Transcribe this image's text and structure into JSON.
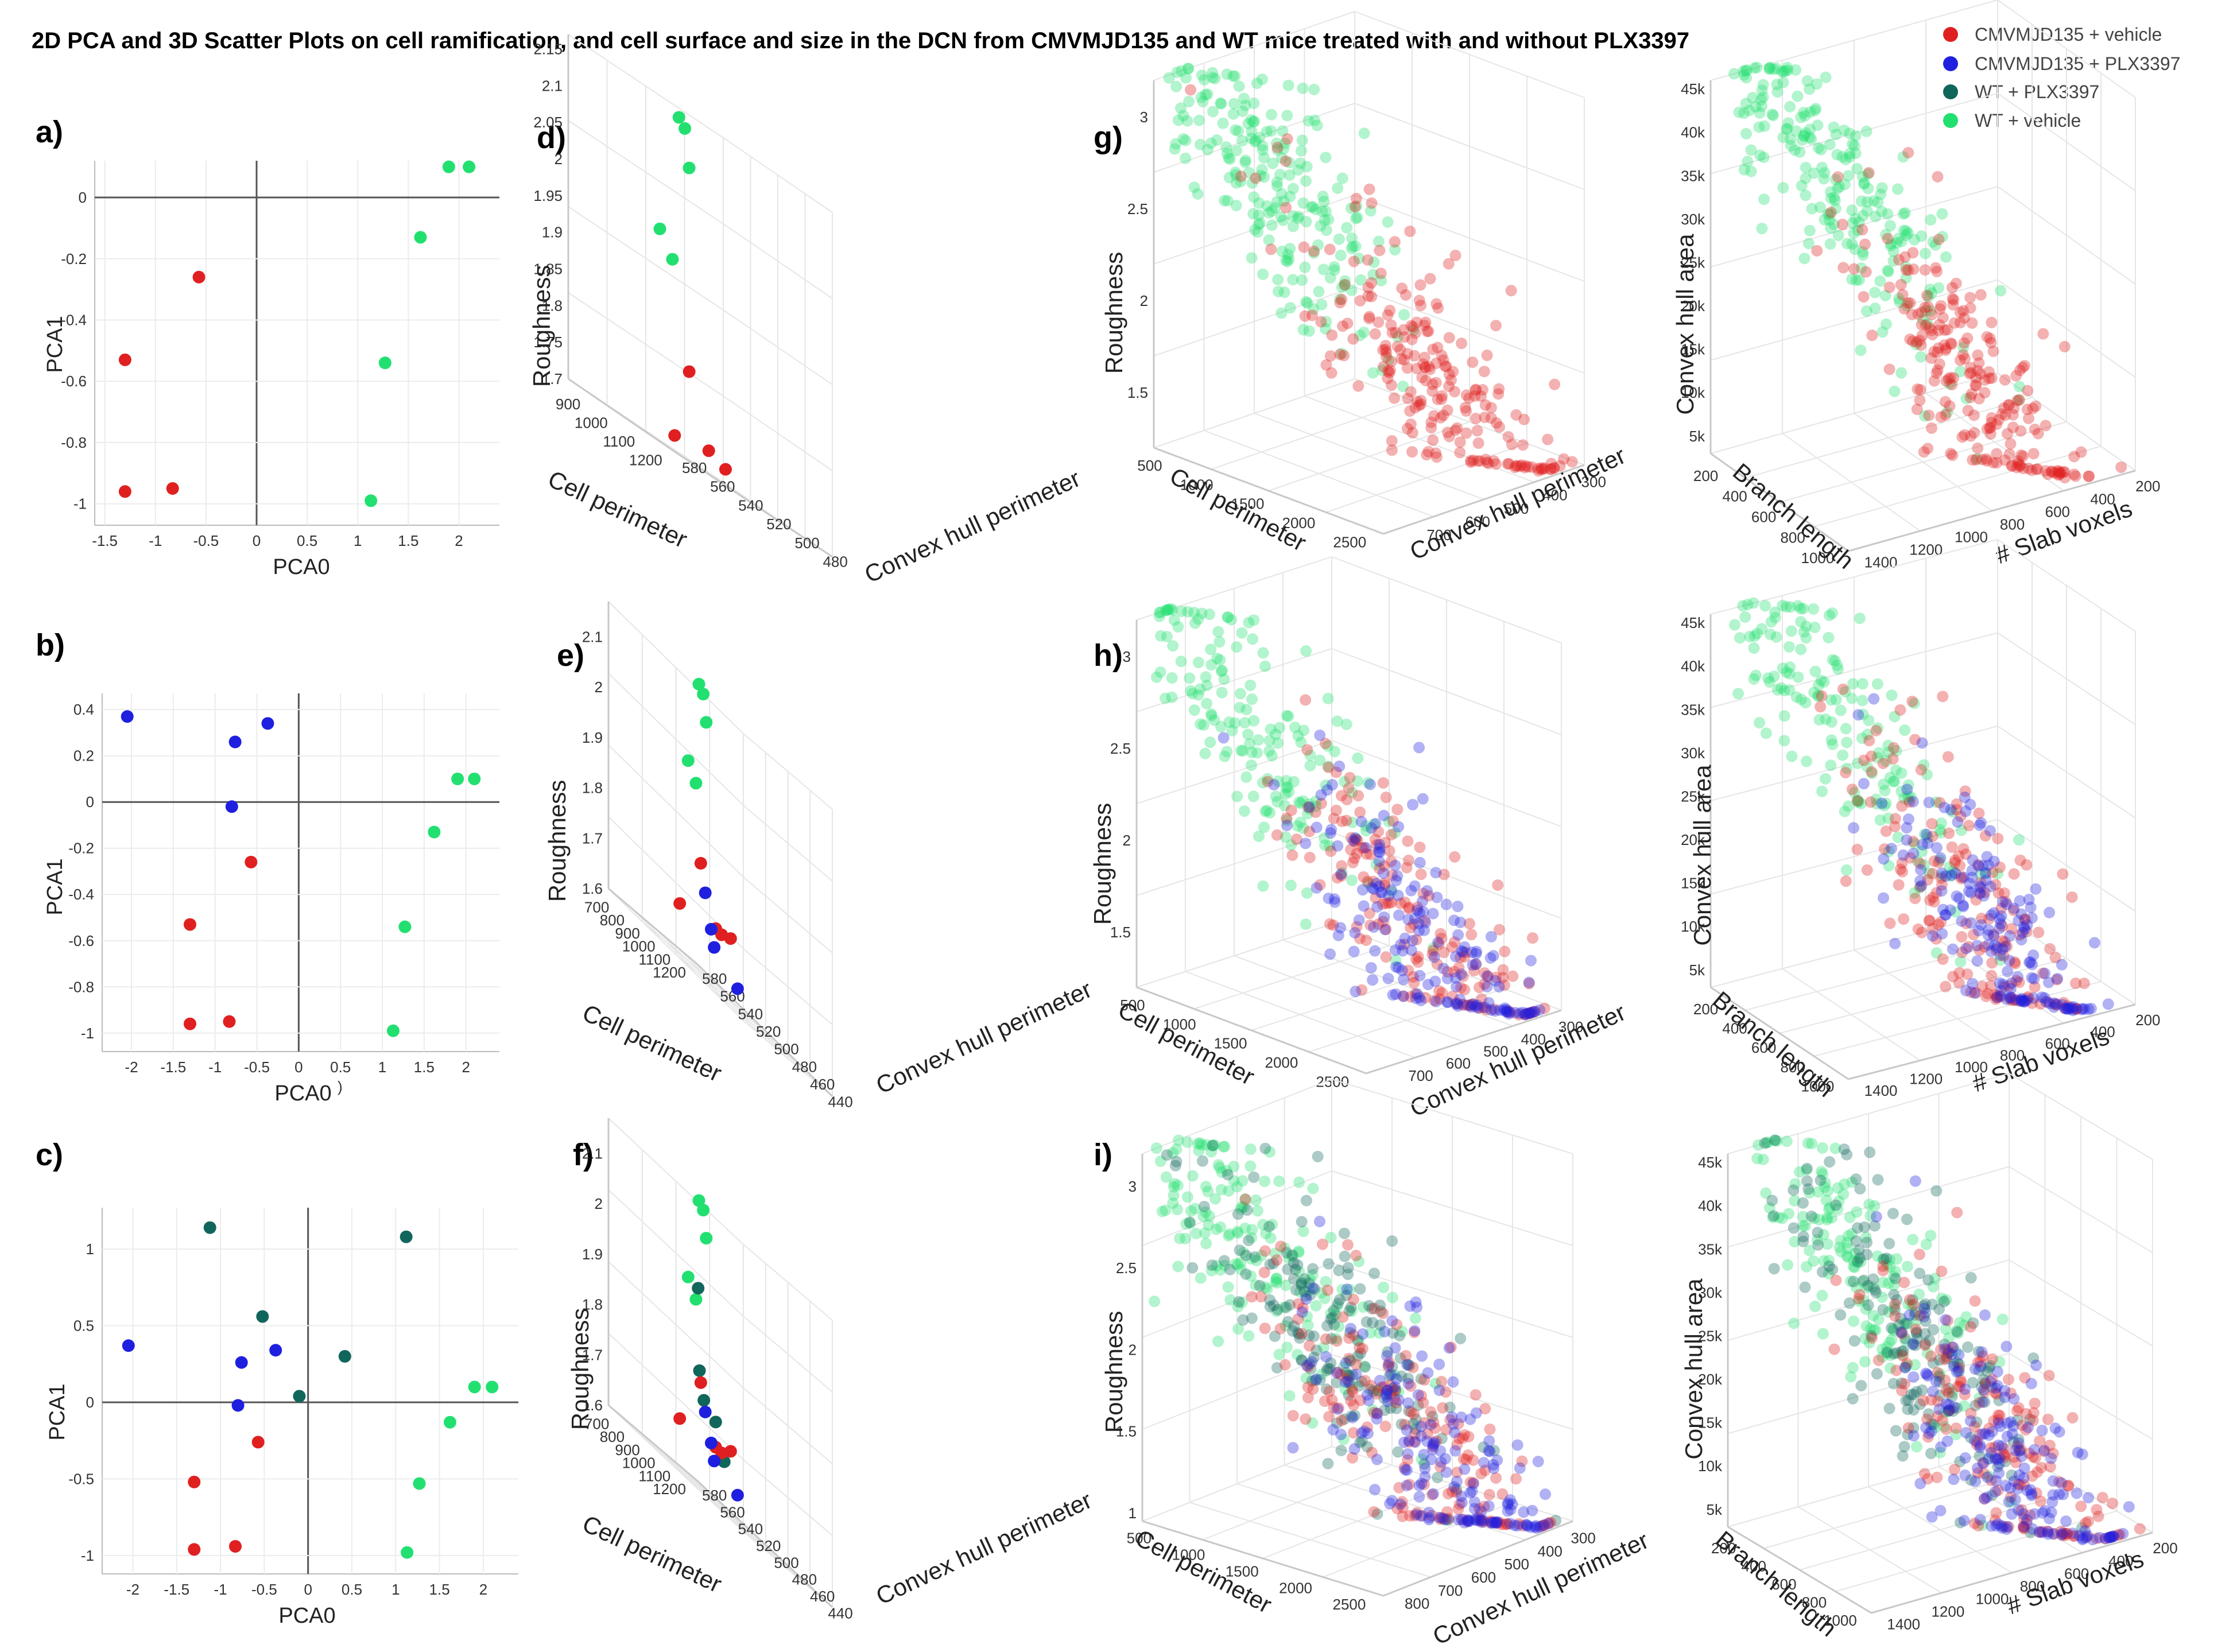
{
  "title": "2D PCA and 3D Scatter Plots on cell ramification, and cell surface and size in the DCN from CMVMJD135 and WT mice treated with and without PLX3397",
  "legend": [
    {
      "label": "CMVMJD135 + vehicle",
      "color": "#e02020"
    },
    {
      "label": "CMVMJD135 + PLX3397",
      "color": "#1f1fe0"
    },
    {
      "label": "WT + PLX3397",
      "color": "#11665c"
    },
    {
      "label": "WT + vehicle",
      "color": "#22e070"
    }
  ],
  "stray_mark": ")",
  "chart_data": [
    {
      "id": "a",
      "panel_label": "a)",
      "type": "scatter",
      "xlabel": "PCA0",
      "ylabel": "PCA1",
      "xlim": [
        -1.6,
        2.4
      ],
      "ylim": [
        -1.07,
        0.12
      ],
      "xticks": [
        -1.5,
        -1,
        -0.5,
        0,
        0.5,
        1,
        1.5,
        2
      ],
      "xtick_labels": [
        "-1.5",
        "-1",
        "-0.5",
        "0",
        "0.5",
        "1",
        "1.5",
        "2"
      ],
      "yticks": [
        0,
        -0.2,
        -0.4,
        -0.6,
        -0.8,
        -1
      ],
      "ytick_labels": [
        "0",
        "-0.2",
        "-0.4",
        "-0.6",
        "-0.8",
        "-1"
      ],
      "series": [
        {
          "name": "CMVMJD135 + vehicle",
          "color": "#e02020",
          "x": [
            -0.57,
            -1.3,
            -0.83,
            -1.3
          ],
          "y": [
            -0.26,
            -0.53,
            -0.95,
            -0.96
          ]
        },
        {
          "name": "WT + vehicle",
          "color": "#22e070",
          "x": [
            1.9,
            2.1,
            1.62,
            1.27,
            1.13
          ],
          "y": [
            0.1,
            0.1,
            -0.13,
            -0.54,
            -0.99
          ]
        }
      ]
    },
    {
      "id": "b",
      "panel_label": "b)",
      "type": "scatter",
      "xlabel": "PCA0",
      "ylabel": "PCA1",
      "xlim": [
        -2.35,
        2.4
      ],
      "ylim": [
        -1.08,
        0.47
      ],
      "xticks": [
        -2,
        -1.5,
        -1,
        -0.5,
        0,
        0.5,
        1,
        1.5,
        2
      ],
      "xtick_labels": [
        "-2",
        "-1.5",
        "-1",
        "-0.5",
        "0",
        "0.5",
        "1",
        "1.5",
        "2"
      ],
      "yticks": [
        0.4,
        0.2,
        0,
        -0.2,
        -0.4,
        -0.6,
        -0.8,
        -1
      ],
      "ytick_labels": [
        "0.4",
        "0.2",
        "0",
        "-0.2",
        "-0.4",
        "-0.6",
        "-0.8",
        "-1"
      ],
      "series": [
        {
          "name": "CMVMJD135 + PLX3397",
          "color": "#1f1fe0",
          "x": [
            -2.05,
            -0.37,
            -0.76,
            -0.8
          ],
          "y": [
            0.37,
            0.34,
            0.26,
            -0.02
          ]
        },
        {
          "name": "CMVMJD135 + vehicle",
          "color": "#e02020",
          "x": [
            -0.57,
            -1.3,
            -0.83,
            -1.3
          ],
          "y": [
            -0.26,
            -0.53,
            -0.95,
            -0.96
          ]
        },
        {
          "name": "WT + vehicle",
          "color": "#22e070",
          "x": [
            1.9,
            2.1,
            1.62,
            1.27,
            1.13
          ],
          "y": [
            0.1,
            0.1,
            -0.13,
            -0.54,
            -0.99
          ]
        }
      ]
    },
    {
      "id": "c",
      "panel_label": "c)",
      "type": "scatter",
      "xlabel": "PCA0",
      "ylabel": "PCA1",
      "xlim": [
        -2.35,
        2.4
      ],
      "ylim": [
        -1.12,
        1.27
      ],
      "xticks": [
        -2,
        -1.5,
        -1,
        -0.5,
        0,
        0.5,
        1,
        1.5,
        2
      ],
      "xtick_labels": [
        "-2",
        "-1.5",
        "-1",
        "-0.5",
        "0",
        "0.5",
        "1",
        "1.5",
        "2"
      ],
      "yticks": [
        1,
        0.5,
        0,
        -0.5,
        -1
      ],
      "ytick_labels": [
        "1",
        "0.5",
        "0",
        "-0.5",
        "-1"
      ],
      "series": [
        {
          "name": "WT + PLX3397",
          "color": "#11665c",
          "x": [
            -1.12,
            1.12,
            -0.52,
            0.42,
            -0.1
          ],
          "y": [
            1.14,
            1.08,
            0.56,
            0.3,
            0.04
          ]
        },
        {
          "name": "CMVMJD135 + PLX3397",
          "color": "#1f1fe0",
          "x": [
            -2.05,
            -0.37,
            -0.76,
            -0.8
          ],
          "y": [
            0.37,
            0.34,
            0.26,
            -0.02
          ]
        },
        {
          "name": "CMVMJD135 + vehicle",
          "color": "#e02020",
          "x": [
            -0.57,
            -1.3,
            -0.83,
            -1.3
          ],
          "y": [
            -0.26,
            -0.52,
            -0.94,
            -0.96
          ]
        },
        {
          "name": "WT + vehicle",
          "color": "#22e070",
          "x": [
            1.9,
            2.1,
            1.62,
            1.27,
            1.13
          ],
          "y": [
            0.1,
            0.1,
            -0.13,
            -0.53,
            -0.98
          ]
        }
      ]
    },
    {
      "id": "d",
      "panel_label": "d)",
      "type": "scatter3d",
      "xlabel": "Cell perimeter",
      "ylabel": "Convex hull perimeter",
      "zlabel": "Roughness",
      "xlim": [
        830,
        1230
      ],
      "ylim": [
        580,
        470
      ],
      "zlim": [
        1.7,
        2.17
      ],
      "xticks": [
        900,
        1000,
        1100,
        1200
      ],
      "xtick_labels": [
        "900",
        "1000",
        "1100",
        "1200"
      ],
      "yticks": [
        580,
        560,
        540,
        520,
        500,
        480
      ],
      "ytick_labels": [
        "580",
        "560",
        "540",
        "520",
        "500",
        "480"
      ],
      "zticks": [
        1.7,
        1.75,
        1.8,
        1.85,
        1.9,
        1.95,
        2,
        2.05,
        2.1,
        2.15
      ],
      "ztick_labels": [
        "1.7",
        "1.75",
        "1.8",
        "1.85",
        "1.9",
        "1.95",
        "2",
        "2.05",
        "2.1",
        "2.15"
      ],
      "series": [
        {
          "name": "WT + vehicle",
          "color": "#22e070",
          "x": [
            1210,
            1180,
            1170,
            1140,
            1150
          ],
          "y": [
            575,
            565,
            560,
            575,
            568
          ],
          "z": [
            2.16,
            2.15,
            2.1,
            1.99,
            1.96
          ]
        },
        {
          "name": "CMVMJD135 + vehicle",
          "color": "#e02020",
          "x": [
            860,
            880,
            890,
            910
          ],
          "y": [
            500,
            490,
            480,
            520
          ],
          "z": [
            1.82,
            1.73,
            1.72,
            1.72
          ]
        }
      ]
    },
    {
      "id": "e",
      "panel_label": "e)",
      "type": "scatter3d",
      "xlabel": "Cell perimeter",
      "ylabel": "Convex hull perimeter",
      "zlabel": "Roughness",
      "xlim": [
        650,
        1230
      ],
      "ylim": [
        580,
        430
      ],
      "zlim": [
        1.6,
        2.17
      ],
      "xticks": [
        700,
        800,
        900,
        1000,
        1100,
        1200
      ],
      "xtick_labels": [
        "700",
        "800",
        "900",
        "1000",
        "1100",
        "1200"
      ],
      "yticks": [
        580,
        560,
        540,
        520,
        500,
        480,
        460,
        440
      ],
      "ytick_labels": [
        "580",
        "560",
        "540",
        "520",
        "500",
        "480",
        "460",
        "440"
      ],
      "zticks": [
        1.6,
        1.7,
        1.8,
        1.9,
        2,
        2.1
      ],
      "ztick_labels": [
        "1.6",
        "1.7",
        "1.8",
        "1.9",
        "2",
        "2.1"
      ],
      "series": [
        {
          "name": "WT + vehicle",
          "color": "#22e070",
          "x": [
            1210,
            1180,
            1170,
            1140,
            1150
          ],
          "y": [
            575,
            565,
            560,
            575,
            568
          ],
          "z": [
            2.16,
            2.15,
            2.1,
            1.99,
            1.96
          ]
        },
        {
          "name": "CMVMJD135 + vehicle",
          "color": "#e02020",
          "x": [
            900,
            880,
            860,
            880,
            860
          ],
          "y": [
            520,
            500,
            490,
            540,
            480
          ],
          "z": [
            1.82,
            1.72,
            1.72,
            1.7,
            1.73
          ]
        },
        {
          "name": "CMVMJD135 + PLX3397",
          "color": "#1f1fe0",
          "x": [
            900,
            880,
            870,
            700
          ],
          "y": [
            515,
            505,
            500,
            445
          ],
          "z": [
            1.77,
            1.71,
            1.68,
            1.65
          ]
        }
      ]
    },
    {
      "id": "f",
      "panel_label": "f)",
      "type": "scatter3d",
      "xlabel": "Cell perimeter",
      "ylabel": "Convex hull perimeter",
      "zlabel": "Roughness",
      "xlim": [
        650,
        1230
      ],
      "ylim": [
        580,
        430
      ],
      "zlim": [
        1.6,
        2.17
      ],
      "xticks": [
        700,
        800,
        900,
        1000,
        1100,
        1200
      ],
      "xtick_labels": [
        "700",
        "800",
        "900",
        "1000",
        "1100",
        "1200"
      ],
      "yticks": [
        580,
        560,
        540,
        520,
        500,
        480,
        460,
        440
      ],
      "ytick_labels": [
        "580",
        "560",
        "540",
        "520",
        "500",
        "480",
        "460",
        "440"
      ],
      "zticks": [
        1.6,
        1.7,
        1.8,
        1.9,
        2,
        2.1
      ],
      "ztick_labels": [
        "1.6",
        "1.7",
        "1.8",
        "1.9",
        "2",
        "2.1"
      ],
      "series": [
        {
          "name": "WT + vehicle",
          "color": "#22e070",
          "x": [
            1210,
            1180,
            1170,
            1140,
            1150
          ],
          "y": [
            575,
            565,
            560,
            575,
            568
          ],
          "z": [
            2.16,
            2.15,
            2.1,
            1.99,
            1.96
          ]
        },
        {
          "name": "WT + PLX3397",
          "color": "#11665c",
          "x": [
            1000,
            950,
            920,
            880,
            760
          ],
          "y": [
            540,
            530,
            520,
            500,
            470
          ],
          "z": [
            1.99,
            1.83,
            1.78,
            1.76,
            1.7
          ]
        },
        {
          "name": "CMVMJD135 + vehicle",
          "color": "#e02020",
          "x": [
            900,
            880,
            860,
            880,
            860
          ],
          "y": [
            520,
            500,
            490,
            540,
            480
          ],
          "z": [
            1.81,
            1.71,
            1.71,
            1.7,
            1.73
          ]
        },
        {
          "name": "CMVMJD135 + PLX3397",
          "color": "#1f1fe0",
          "x": [
            900,
            880,
            870,
            700
          ],
          "y": [
            515,
            505,
            500,
            445
          ],
          "z": [
            1.76,
            1.71,
            1.68,
            1.66
          ]
        }
      ]
    },
    {
      "id": "g1",
      "panel_label": "g)",
      "type": "scatter3d",
      "distribution": true,
      "xlabel": "Cell perimeter",
      "ylabel": "Convex hull perimeter",
      "zlabel": "Roughness",
      "xlim": [
        350,
        2600
      ],
      "ylim": [
        800,
        280
      ],
      "zlim": [
        1.2,
        3.2
      ],
      "xticks": [
        500,
        1000,
        1500,
        2000,
        2500
      ],
      "xtick_labels": [
        "500",
        "1000",
        "1500",
        "2000",
        "2500"
      ],
      "yticks": [
        700,
        600,
        500,
        400,
        300
      ],
      "ytick_labels": [
        "700",
        "600",
        "500",
        "400",
        "300"
      ],
      "zticks": [
        1.5,
        2,
        2.5,
        3
      ],
      "ztick_labels": [
        "1.5",
        "2",
        "2.5",
        "3"
      ],
      "groups": [
        "WT + vehicle",
        "CMVMJD135 + vehicle"
      ]
    },
    {
      "id": "g2",
      "panel_label": "",
      "type": "scatter3d",
      "distribution": true,
      "xlabel": "Branch length",
      "ylabel": "# Slab voxels",
      "zlabel": "Convex hull area",
      "xlim": [
        100,
        1050
      ],
      "ylim": [
        1450,
        180
      ],
      "zlim": [
        3000,
        46000
      ],
      "xticks": [
        200,
        400,
        600,
        800,
        1000
      ],
      "xtick_labels": [
        "200",
        "400",
        "600",
        "800",
        "1000"
      ],
      "yticks": [
        1400,
        1200,
        1000,
        800,
        600,
        400,
        200
      ],
      "ytick_labels": [
        "1400",
        "1200",
        "1000",
        "800",
        "600",
        "400",
        "200"
      ],
      "zticks": [
        5000,
        10000,
        15000,
        20000,
        25000,
        30000,
        35000,
        40000,
        45000
      ],
      "ztick_labels": [
        "5k",
        "10k",
        "15k",
        "20k",
        "25k",
        "30k",
        "35k",
        "40k",
        "45k"
      ],
      "groups": [
        "WT + vehicle",
        "CMVMJD135 + vehicle"
      ]
    },
    {
      "id": "h1",
      "panel_label": "h)",
      "type": "scatter3d",
      "distribution": true,
      "xlabel": "Cell perimeter",
      "ylabel": "Convex hull perimeter",
      "zlabel": "Roughness",
      "xlim": [
        350,
        2600
      ],
      "ylim": [
        800,
        280
      ],
      "zlim": [
        1.2,
        3.2
      ],
      "xticks": [
        500,
        1000,
        1500,
        2000,
        2500
      ],
      "xtick_labels": [
        "500",
        "1000",
        "1500",
        "2000",
        "2500"
      ],
      "yticks": [
        700,
        600,
        500,
        400,
        300
      ],
      "ytick_labels": [
        "700",
        "600",
        "500",
        "400",
        "300"
      ],
      "zticks": [
        1.5,
        2,
        2.5,
        3
      ],
      "ztick_labels": [
        "1.5",
        "2",
        "2.5",
        "3"
      ],
      "groups": [
        "WT + vehicle",
        "CMVMJD135 + vehicle",
        "CMVMJD135 + PLX3397"
      ]
    },
    {
      "id": "h2",
      "panel_label": "",
      "type": "scatter3d",
      "distribution": true,
      "xlabel": "Branch length",
      "ylabel": "# Slab voxels",
      "zlabel": "Convex hull area",
      "xlim": [
        100,
        1050
      ],
      "ylim": [
        1450,
        180
      ],
      "zlim": [
        3000,
        46000
      ],
      "xticks": [
        200,
        400,
        600,
        800,
        1000
      ],
      "xtick_labels": [
        "200",
        "400",
        "600",
        "800",
        "1000"
      ],
      "yticks": [
        1400,
        1200,
        1000,
        800,
        600,
        400,
        200
      ],
      "ytick_labels": [
        "1400",
        "1200",
        "1000",
        "800",
        "600",
        "400",
        "200"
      ],
      "zticks": [
        5000,
        10000,
        15000,
        20000,
        25000,
        30000,
        35000,
        40000,
        45000
      ],
      "ztick_labels": [
        "5k",
        "10k",
        "15k",
        "20k",
        "25k",
        "30k",
        "35k",
        "40k",
        "45k"
      ],
      "groups": [
        "WT + vehicle",
        "CMVMJD135 + vehicle",
        "CMVMJD135 + PLX3397"
      ]
    },
    {
      "id": "i1",
      "panel_label": "i)",
      "type": "scatter3d",
      "distribution": true,
      "xlabel": "Cell perimeter",
      "ylabel": "Convex hull perimeter",
      "zlabel": "Roughness",
      "xlim": [
        350,
        2600
      ],
      "ylim": [
        850,
        280
      ],
      "zlim": [
        0.95,
        3.2
      ],
      "xticks": [
        500,
        1000,
        1500,
        2000,
        2500
      ],
      "xtick_labels": [
        "500",
        "1000",
        "1500",
        "2000",
        "2500"
      ],
      "yticks": [
        800,
        700,
        600,
        500,
        400,
        300
      ],
      "ytick_labels": [
        "800",
        "700",
        "600",
        "500",
        "400",
        "300"
      ],
      "zticks": [
        1,
        1.5,
        2,
        2.5,
        3
      ],
      "ztick_labels": [
        "1",
        "1.5",
        "2",
        "2.5",
        "3"
      ],
      "groups": [
        "WT + vehicle",
        "WT + PLX3397",
        "CMVMJD135 + vehicle",
        "CMVMJD135 + PLX3397"
      ]
    },
    {
      "id": "i2",
      "panel_label": "",
      "type": "scatter3d",
      "distribution": true,
      "xlabel": "Branch length",
      "ylabel": "# Slab voxels",
      "zlabel": "Convex hull area",
      "xlim": [
        100,
        1050
      ],
      "ylim": [
        1450,
        180
      ],
      "zlim": [
        3000,
        46000
      ],
      "xticks": [
        200,
        400,
        600,
        800,
        1000
      ],
      "xtick_labels": [
        "200",
        "400",
        "600",
        "800",
        "1000"
      ],
      "yticks": [
        1400,
        1200,
        1000,
        800,
        600,
        400,
        200
      ],
      "ytick_labels": [
        "1400",
        "1200",
        "1000",
        "800",
        "600",
        "400",
        "200"
      ],
      "zticks": [
        5000,
        10000,
        15000,
        20000,
        25000,
        30000,
        35000,
        40000,
        45000
      ],
      "ztick_labels": [
        "5k",
        "10k",
        "15k",
        "20k",
        "25k",
        "30k",
        "35k",
        "40k",
        "45k"
      ],
      "groups": [
        "WT + vehicle",
        "WT + PLX3397",
        "CMVMJD135 + vehicle",
        "CMVMJD135 + PLX3397"
      ]
    }
  ]
}
